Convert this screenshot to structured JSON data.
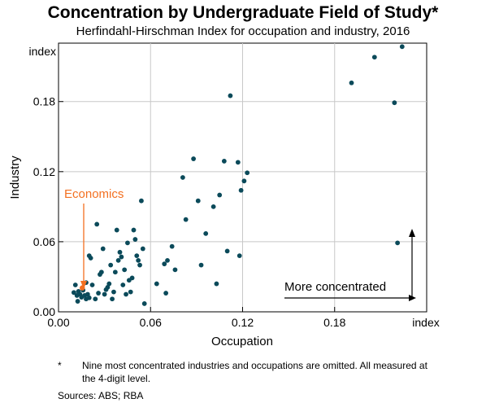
{
  "chart_data": {
    "type": "scatter",
    "title": "Concentration by Undergraduate Field of Study*",
    "subtitle": "Herfindahl-Hirschman Index for occupation and industry, 2016",
    "xlabel": "Occupation",
    "ylabel": "Industry",
    "x_unit": "index",
    "y_unit": "index",
    "xlim": [
      0,
      0.24
    ],
    "ylim": [
      0,
      0.23
    ],
    "x_ticks": [
      0.0,
      0.06,
      0.12,
      0.18
    ],
    "x_tick_labels": [
      "0.00",
      "0.06",
      "0.12",
      "0.18"
    ],
    "y_ticks": [
      0.0,
      0.06,
      0.12,
      0.18
    ],
    "y_tick_labels": [
      "0.00",
      "0.06",
      "0.12",
      "0.18"
    ],
    "grid": true,
    "point_color": "#0B4A5A",
    "highlight_color": "#F37021",
    "highlight": {
      "label": "Economics",
      "point": [
        0.0155,
        0.0205
      ]
    },
    "annotation": "More concentrated",
    "points": [
      [
        0.01,
        0.0165
      ],
      [
        0.011,
        0.023
      ],
      [
        0.012,
        0.014
      ],
      [
        0.0125,
        0.009
      ],
      [
        0.013,
        0.0175
      ],
      [
        0.014,
        0.015
      ],
      [
        0.015,
        0.0125
      ],
      [
        0.016,
        0.0185
      ],
      [
        0.017,
        0.014
      ],
      [
        0.018,
        0.011
      ],
      [
        0.018,
        0.025
      ],
      [
        0.019,
        0.015
      ],
      [
        0.02,
        0.012
      ],
      [
        0.02,
        0.048
      ],
      [
        0.021,
        0.046
      ],
      [
        0.022,
        0.023
      ],
      [
        0.024,
        0.011
      ],
      [
        0.025,
        0.075
      ],
      [
        0.026,
        0.016
      ],
      [
        0.027,
        0.032
      ],
      [
        0.028,
        0.034
      ],
      [
        0.029,
        0.054
      ],
      [
        0.03,
        0.015
      ],
      [
        0.031,
        0.019
      ],
      [
        0.032,
        0.021
      ],
      [
        0.033,
        0.024
      ],
      [
        0.034,
        0.04
      ],
      [
        0.035,
        0.011
      ],
      [
        0.036,
        0.017
      ],
      [
        0.037,
        0.034
      ],
      [
        0.038,
        0.07
      ],
      [
        0.039,
        0.044
      ],
      [
        0.04,
        0.051
      ],
      [
        0.041,
        0.047
      ],
      [
        0.042,
        0.023
      ],
      [
        0.043,
        0.036
      ],
      [
        0.044,
        0.015
      ],
      [
        0.045,
        0.059
      ],
      [
        0.046,
        0.027
      ],
      [
        0.047,
        0.017
      ],
      [
        0.048,
        0.029
      ],
      [
        0.049,
        0.07
      ],
      [
        0.05,
        0.062
      ],
      [
        0.051,
        0.048
      ],
      [
        0.052,
        0.044
      ],
      [
        0.053,
        0.04
      ],
      [
        0.054,
        0.095
      ],
      [
        0.055,
        0.054
      ],
      [
        0.056,
        0.007
      ],
      [
        0.064,
        0.024
      ],
      [
        0.069,
        0.041
      ],
      [
        0.07,
        0.016
      ],
      [
        0.071,
        0.044
      ],
      [
        0.074,
        0.056
      ],
      [
        0.076,
        0.036
      ],
      [
        0.081,
        0.115
      ],
      [
        0.083,
        0.079
      ],
      [
        0.088,
        0.131
      ],
      [
        0.091,
        0.095
      ],
      [
        0.093,
        0.04
      ],
      [
        0.096,
        0.067
      ],
      [
        0.101,
        0.09
      ],
      [
        0.105,
        0.1
      ],
      [
        0.108,
        0.129
      ],
      [
        0.11,
        0.052
      ],
      [
        0.112,
        0.185
      ],
      [
        0.117,
        0.128
      ],
      [
        0.118,
        0.048
      ],
      [
        0.119,
        0.104
      ],
      [
        0.121,
        0.112
      ],
      [
        0.123,
        0.119
      ],
      [
        0.103,
        0.024
      ],
      [
        0.191,
        0.196
      ],
      [
        0.206,
        0.218
      ],
      [
        0.219,
        0.179
      ],
      [
        0.221,
        0.059
      ],
      [
        0.224,
        0.227
      ]
    ]
  }
}
